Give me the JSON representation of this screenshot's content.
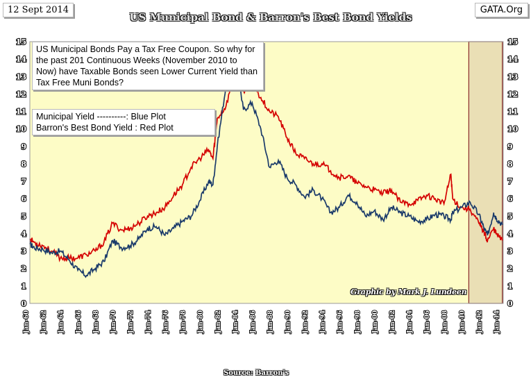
{
  "header": {
    "date": "12 Sept 2014",
    "site": "GATA.Org",
    "title": "US Municipal Bond & Barron's Best Bond Yields"
  },
  "annotations": {
    "note": "US Municipal Bonds  Pay a Tax Free Coupon. So why for the past 201  Continuous Weeks (November 2010 to Now) have Taxable Bonds seen Lower Current Yield than Tax Free Muni Bonds?",
    "legend_blue": "Municipal  Yield ----------: Blue Plot",
    "legend_red": "Barron's Best Bond  Yield : Red Plot",
    "credit": "Graphic by Mark J. Lundeen",
    "source": "Source: Barron's"
  },
  "colors": {
    "background": "#fdfcc6",
    "muni": "#1a3a6a",
    "barrons": "#d40000",
    "highlight": "#eadfb5",
    "highlight_border": "#8a2a2a"
  },
  "chart_data": {
    "type": "line",
    "title": "US Municipal Bond & Barron's Best Bond Yields",
    "xlabel": "Source: Barron's",
    "ylabel": "",
    "ylim": [
      0,
      15
    ],
    "yticks": [
      0,
      1,
      2,
      3,
      4,
      5,
      6,
      7,
      8,
      9,
      10,
      11,
      12,
      13,
      14,
      15
    ],
    "xlim": [
      1960.5,
      2014.8
    ],
    "x_tick_labels": [
      "Jan-60",
      "Jan-62",
      "Jan-64",
      "Jan-66",
      "Jan-68",
      "Jan-70",
      "Jan-72",
      "Jan-74",
      "Jan-76",
      "Jan-78",
      "Jan-80",
      "Jan-82",
      "Jan-84",
      "Jan-86",
      "Jan-88",
      "Jan-90",
      "Jan-92",
      "Jan-94",
      "Jan-96",
      "Jan-98",
      "Jan-00",
      "Jan-02",
      "Jan-04",
      "Jan-06",
      "Jan-08",
      "Jan-10",
      "Jan-12",
      "Jan-14"
    ],
    "x_tick_years": [
      1960,
      1962,
      1964,
      1966,
      1968,
      1970,
      1972,
      1974,
      1976,
      1978,
      1980,
      1982,
      1984,
      1986,
      1988,
      1990,
      1992,
      1994,
      1996,
      1998,
      2000,
      2002,
      2004,
      2006,
      2008,
      2010,
      2012,
      2014
    ],
    "highlight_period": [
      2010.85,
      2014.7
    ],
    "grid": false,
    "legend": "top-left",
    "series": [
      {
        "name": "Municipal Yield",
        "color": "#1a3a6a",
        "x": [
          1960.5,
          1961,
          1962,
          1963,
          1964,
          1965,
          1966,
          1967,
          1968,
          1969,
          1970,
          1971,
          1972,
          1973,
          1974,
          1975,
          1976,
          1977,
          1978,
          1979,
          1980,
          1981,
          1981.5,
          1982,
          1983,
          1984,
          1985,
          1986,
          1987,
          1988,
          1989,
          1990,
          1991,
          1992,
          1993,
          1994,
          1995,
          1996,
          1997,
          1998,
          1999,
          2000,
          2001,
          2002,
          2003,
          2004,
          2005,
          2006,
          2007,
          2008,
          2008.8,
          2009,
          2010,
          2011,
          2012,
          2012.6,
          2013,
          2013.7,
          2014,
          2014.7
        ],
        "values": [
          3.4,
          3.2,
          3.1,
          2.9,
          3.0,
          2.5,
          1.9,
          1.6,
          2.0,
          2.4,
          3.6,
          3.2,
          3.3,
          3.7,
          4.3,
          4.4,
          3.9,
          4.3,
          4.7,
          5.0,
          5.9,
          7.0,
          6.8,
          9.0,
          12.5,
          14.1,
          11.1,
          11.5,
          10.0,
          7.8,
          8.2,
          7.2,
          6.8,
          6.1,
          6.5,
          6.0,
          5.2,
          5.5,
          6.2,
          5.8,
          5.0,
          5.3,
          4.8,
          5.5,
          5.2,
          5.0,
          4.7,
          4.8,
          5.1,
          5.0,
          4.8,
          5.2,
          5.5,
          5.8,
          5.1,
          4.3,
          3.9,
          5.2,
          4.9,
          4.5
        ]
      },
      {
        "name": "Barron's Best Bond Yield",
        "color": "#d40000",
        "x": [
          1960.5,
          1961,
          1962,
          1963,
          1964,
          1965,
          1966,
          1967,
          1968,
          1969,
          1970,
          1971,
          1972,
          1973,
          1974,
          1975,
          1976,
          1977,
          1978,
          1979,
          1980,
          1981,
          1981.5,
          1982,
          1983,
          1984,
          1985,
          1986,
          1987,
          1988,
          1989,
          1990,
          1991,
          1992,
          1993,
          1994,
          1995,
          1996,
          1997,
          1998,
          1999,
          2000,
          2001,
          2002,
          2003,
          2004,
          2005,
          2006,
          2007,
          2008,
          2008.8,
          2009,
          2010,
          2011,
          2012,
          2012.6,
          2013,
          2013.7,
          2014,
          2014.7
        ],
        "values": [
          3.7,
          3.5,
          3.3,
          3.0,
          2.6,
          2.6,
          2.6,
          2.8,
          3.0,
          3.5,
          4.6,
          4.2,
          4.3,
          4.6,
          5.0,
          5.2,
          5.5,
          6.2,
          6.8,
          7.8,
          8.3,
          8.8,
          8.3,
          10.6,
          11.3,
          13.3,
          12.2,
          12.6,
          11.8,
          11.0,
          10.7,
          9.5,
          8.6,
          8.3,
          8.0,
          8.0,
          7.6,
          7.2,
          7.3,
          6.9,
          6.7,
          6.5,
          6.3,
          6.5,
          5.8,
          5.7,
          5.9,
          6.2,
          6.0,
          5.7,
          7.4,
          6.0,
          5.5,
          5.4,
          4.6,
          4.1,
          3.6,
          4.3,
          4.0,
          3.6
        ]
      }
    ]
  }
}
